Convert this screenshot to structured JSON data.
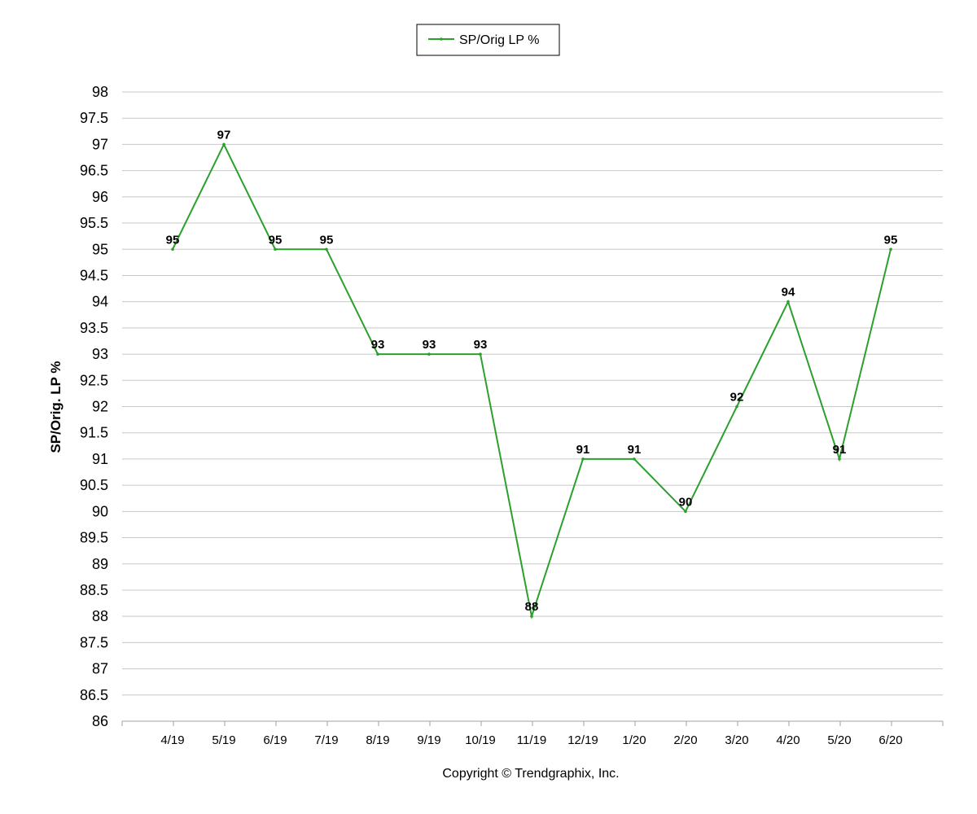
{
  "chart_data": {
    "type": "line",
    "categories": [
      "4/19",
      "5/19",
      "6/19",
      "7/19",
      "8/19",
      "9/19",
      "10/19",
      "11/19",
      "12/19",
      "1/20",
      "2/20",
      "3/20",
      "4/20",
      "5/20",
      "6/20"
    ],
    "series": [
      {
        "name": "SP/Orig LP %",
        "values": [
          95,
          97,
          95,
          95,
          93,
          93,
          93,
          88,
          91,
          91,
          90,
          92,
          94,
          91,
          95
        ],
        "color": "#2ca02c"
      }
    ],
    "title": "",
    "xlabel": "",
    "ylabel": "SP/Orig. LP %",
    "ylim": [
      86,
      98
    ],
    "ytick_step": 0.5,
    "grid": true,
    "legend_position": "top-center",
    "data_labels": true
  },
  "footer": {
    "copyright": "Copyright © Trendgraphix, Inc."
  },
  "colors": {
    "grid": "#c8c8c8",
    "axis": "#a0a0a0",
    "legend_border": "#000000"
  }
}
